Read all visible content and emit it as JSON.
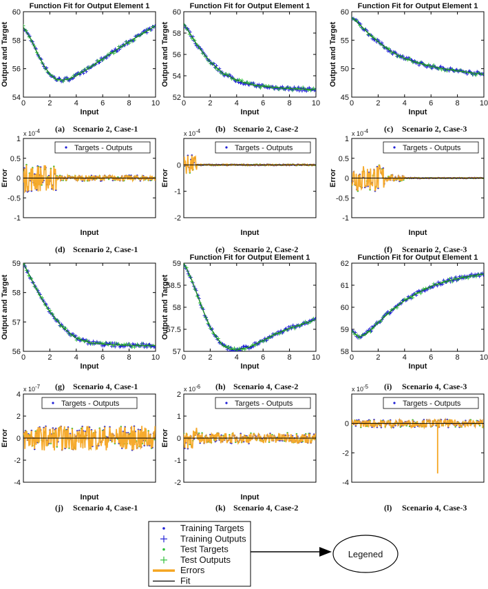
{
  "chart_data": [
    {
      "id": "a",
      "type": "line",
      "title": "Function Fit for Output Element 1",
      "xlabel": "Input",
      "ylabel": "Output and Target",
      "xlim": [
        0,
        10
      ],
      "ylim": [
        54,
        60
      ],
      "xticks": [
        0,
        2,
        4,
        6,
        8,
        10
      ],
      "yticks": [
        54,
        56,
        58,
        60
      ],
      "caption_letter": "(a)",
      "caption_text": "Scenario 2, Case-1",
      "x": [
        0,
        0.5,
        1,
        1.5,
        2,
        2.5,
        3,
        3.5,
        4,
        5,
        6,
        7,
        8,
        9,
        10
      ],
      "y": [
        58.9,
        58.2,
        57.2,
        56.3,
        55.6,
        55.25,
        55.2,
        55.3,
        55.5,
        56.05,
        56.7,
        57.3,
        57.9,
        58.45,
        59.0
      ]
    },
    {
      "id": "b",
      "type": "line",
      "title": "Function Fit for Output Element 1",
      "xlabel": "Input",
      "ylabel": "Output and Target",
      "xlim": [
        0,
        10
      ],
      "ylim": [
        52,
        60
      ],
      "xticks": [
        0,
        2,
        4,
        6,
        8,
        10
      ],
      "yticks": [
        52,
        54,
        56,
        58,
        60
      ],
      "caption_letter": "(b)",
      "caption_text": "Scenario 2, Case-2",
      "x": [
        0,
        0.5,
        1,
        1.5,
        2,
        3,
        4,
        5,
        6,
        7,
        8,
        9,
        10
      ],
      "y": [
        58.9,
        57.9,
        56.9,
        56.1,
        55.3,
        54.2,
        53.6,
        53.2,
        53.0,
        52.9,
        52.8,
        52.75,
        52.7
      ]
    },
    {
      "id": "c",
      "type": "line",
      "title": "Function Fit for Output Element 1",
      "xlabel": "Input",
      "ylabel": "Output and Target",
      "xlim": [
        0,
        10
      ],
      "ylim": [
        45,
        60
      ],
      "xticks": [
        0,
        2,
        4,
        6,
        8,
        10
      ],
      "yticks": [
        45,
        50,
        55,
        60
      ],
      "caption_letter": "(c)",
      "caption_text": "Scenario 2, Case-3",
      "x": [
        0,
        0.5,
        1,
        1.5,
        2,
        3,
        4,
        5,
        6,
        7,
        8,
        9,
        10
      ],
      "y": [
        59.0,
        58.0,
        56.8,
        55.7,
        54.7,
        53.0,
        51.8,
        51.0,
        50.4,
        50.0,
        49.6,
        49.3,
        49.0
      ]
    },
    {
      "id": "d",
      "type": "line",
      "xlabel": "Input",
      "ylabel": "Error",
      "exponent": "x 10-4",
      "xlim": [
        0,
        10
      ],
      "ylim": [
        -1,
        1
      ],
      "yticks": [
        -1,
        -0.5,
        0,
        0.5,
        1
      ],
      "ytick_labels": [
        "-1",
        "-0.5",
        "0",
        "0.5",
        "1"
      ],
      "legend_label": "Targets - Outputs",
      "legend_placement": "top-right",
      "caption_letter": "(d)",
      "caption_text": "Scenario 2, Case-1"
    },
    {
      "id": "e",
      "type": "line",
      "xlabel": "Input",
      "ylabel": "Error",
      "exponent": "x 10-4",
      "xlim": [
        0,
        10
      ],
      "ylim": [
        -2,
        1
      ],
      "yticks": [
        -2,
        -1,
        0
      ],
      "ytick_labels": [
        "-2",
        "-1",
        "0"
      ],
      "legend_label": "Targets - Outputs",
      "legend_placement": "top-right",
      "caption_letter": "(e)",
      "caption_text": "Scenario 2, Case-2"
    },
    {
      "id": "f",
      "type": "line",
      "xlabel": "Input",
      "ylabel": "Error",
      "exponent": "x 10-4",
      "xlim": [
        0,
        10
      ],
      "ylim": [
        -1,
        1
      ],
      "yticks": [
        -1,
        -0.5,
        0,
        0.5,
        1
      ],
      "ytick_labels": [
        "-1",
        "-0.5",
        "0",
        "0.5",
        "1"
      ],
      "legend_label": "Targets - Outputs",
      "legend_placement": "top-right",
      "caption_letter": "(f)",
      "caption_text": "Scenario 2, Case-3"
    },
    {
      "id": "g",
      "type": "line",
      "xlabel": "Input",
      "ylabel": "Output and Target",
      "xlim": [
        0,
        10
      ],
      "ylim": [
        56,
        59
      ],
      "xticks": [
        0,
        2,
        4,
        6,
        8,
        10
      ],
      "yticks": [
        56,
        57,
        58,
        59
      ],
      "caption_letter": "(g)",
      "caption_text": "Scenario 4, Case-1",
      "x": [
        0,
        0.5,
        1,
        1.5,
        2,
        3,
        4,
        5,
        6,
        7,
        8,
        9,
        10
      ],
      "y": [
        59.0,
        58.55,
        58.1,
        57.7,
        57.35,
        56.8,
        56.45,
        56.3,
        56.25,
        56.22,
        56.2,
        56.2,
        56.2
      ]
    },
    {
      "id": "h",
      "type": "line",
      "title": "Function Fit for Output Element 1",
      "xlabel": "Input",
      "ylabel": "Output and Target",
      "xlim": [
        0,
        10
      ],
      "ylim": [
        57,
        59
      ],
      "xticks": [
        0,
        2,
        4,
        6,
        8,
        10
      ],
      "yticks": [
        57,
        57.5,
        58,
        58.5,
        59
      ],
      "ytick_labels": [
        "57",
        "57.5",
        "58",
        "58.5",
        "59"
      ],
      "caption_letter": "(h)",
      "caption_text": "Scenario 4, Case-2",
      "x": [
        0,
        0.5,
        1,
        1.5,
        2,
        2.5,
        3,
        3.5,
        4,
        5,
        6,
        7,
        8,
        9,
        10
      ],
      "y": [
        59.0,
        58.7,
        58.3,
        57.9,
        57.55,
        57.3,
        57.12,
        57.05,
        57.03,
        57.1,
        57.25,
        57.4,
        57.52,
        57.62,
        57.72
      ]
    },
    {
      "id": "i",
      "type": "line",
      "title": "Function Fit for Output Element 1",
      "xlabel": "Input",
      "ylabel": "",
      "xlim": [
        0,
        10
      ],
      "ylim": [
        58,
        62
      ],
      "xticks": [
        0,
        2,
        4,
        6,
        8,
        10
      ],
      "yticks": [
        58,
        59,
        60,
        61,
        62
      ],
      "caption_letter": "(i)",
      "caption_text": "Scenario 4, Case-3",
      "x": [
        0,
        0.5,
        1,
        1.5,
        2,
        3,
        4,
        5,
        6,
        7,
        8,
        9,
        10
      ],
      "y": [
        58.95,
        58.65,
        58.75,
        59.0,
        59.3,
        59.85,
        60.3,
        60.65,
        60.95,
        61.15,
        61.3,
        61.42,
        61.5
      ]
    },
    {
      "id": "j",
      "type": "line",
      "xlabel": "Input",
      "ylabel": "Error",
      "exponent": "x 10-7",
      "xlim": [
        0,
        10
      ],
      "ylim": [
        -4,
        4
      ],
      "yticks": [
        -4,
        -2,
        0,
        2,
        4
      ],
      "ytick_labels": [
        "-4",
        "-2",
        "0",
        "2",
        "4"
      ],
      "legend_label": "Targets - Outputs",
      "legend_placement": "top",
      "caption_letter": "(j)",
      "caption_text": "Scenario 4, Case-1"
    },
    {
      "id": "k",
      "type": "line",
      "xlabel": "Input",
      "ylabel": "Error",
      "exponent": "x 10-6",
      "xlim": [
        0,
        10
      ],
      "ylim": [
        -2,
        2
      ],
      "yticks": [
        -2,
        -1,
        0,
        1,
        2
      ],
      "ytick_labels": [
        "-2",
        "-1",
        "0",
        "1",
        "2"
      ],
      "legend_label": "Targets - Outputs",
      "legend_placement": "top-right",
      "caption_letter": "(k)",
      "caption_text": "Scenario 4, Case-2"
    },
    {
      "id": "l",
      "type": "line",
      "xlabel": "",
      "ylabel": "",
      "exponent": "x 10-5",
      "xlim": [
        0,
        10
      ],
      "ylim": [
        -4,
        2
      ],
      "yticks": [
        -4,
        -2,
        0
      ],
      "ytick_labels": [
        "-4",
        "-2",
        "0"
      ],
      "legend_label": "Targets - Outputs",
      "legend_placement": "top-right",
      "caption_letter": "(l)",
      "caption_text": "Scenario 4, Case-3"
    }
  ],
  "legend": {
    "entries": [
      {
        "label": "Training Targets",
        "marker": "dot",
        "color": "#1f1fd6"
      },
      {
        "label": "Training Outputs",
        "marker": "plus",
        "color": "#1f1fd6"
      },
      {
        "label": "Test Targets",
        "marker": "dot",
        "color": "#2fbf3a"
      },
      {
        "label": "Test Outputs",
        "marker": "plus",
        "color": "#2fbf3a"
      },
      {
        "label": "Errors",
        "marker": "thick-line",
        "color": "#f5a623"
      },
      {
        "label": "Fit",
        "marker": "line",
        "color": "#000000"
      }
    ],
    "callout_label": "Legened"
  },
  "colors": {
    "training": "#1f1fd6",
    "test": "#2fbf3a",
    "errors": "#f5a623",
    "fit": "#000000"
  }
}
